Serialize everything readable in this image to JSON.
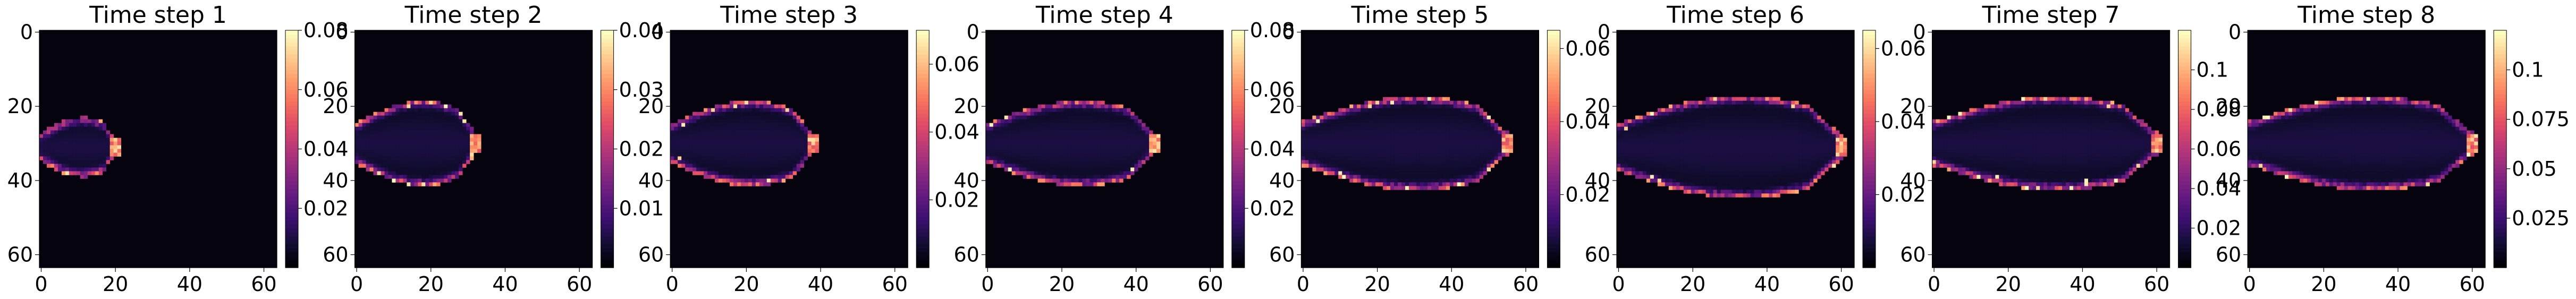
{
  "figure": {
    "colormap": "magma",
    "colormap_stops": [
      "#000004",
      "#140e36",
      "#3b0f70",
      "#641a80",
      "#8c2981",
      "#b73779",
      "#de4968",
      "#f7705c",
      "#fe9f6d",
      "#fecf92",
      "#fcfdbf"
    ]
  },
  "chart_data": [
    {
      "type": "heatmap",
      "title": "Time step 1",
      "grid_size": 64,
      "xlim": [
        0,
        63
      ],
      "ylim": [
        63,
        0
      ],
      "xticks": [
        0,
        20,
        40,
        60
      ],
      "yticks": [
        0,
        20,
        40,
        60
      ],
      "colorbar": {
        "vmin": 0.0,
        "vmax": 0.08,
        "ticks": [
          0.02,
          0.04,
          0.06,
          0.08
        ]
      },
      "plume": {
        "start_x": 0,
        "tip_x": 20,
        "center_y": 31,
        "half_width": 7,
        "peak": 0.08
      }
    },
    {
      "type": "heatmap",
      "title": "Time step 2",
      "grid_size": 64,
      "xlim": [
        0,
        63
      ],
      "ylim": [
        63,
        0
      ],
      "xticks": [
        0,
        20,
        40,
        60
      ],
      "yticks": [
        0,
        20,
        40,
        60
      ],
      "colorbar": {
        "vmin": 0.0,
        "vmax": 0.04,
        "ticks": [
          0.01,
          0.02,
          0.03,
          0.04
        ]
      },
      "plume": {
        "start_x": 0,
        "tip_x": 32,
        "center_y": 30,
        "half_width": 10,
        "peak": 0.042
      }
    },
    {
      "type": "heatmap",
      "title": "Time step 3",
      "grid_size": 64,
      "xlim": [
        0,
        63
      ],
      "ylim": [
        63,
        0
      ],
      "xticks": [
        0,
        20,
        40,
        60
      ],
      "yticks": [
        0,
        20,
        40,
        60
      ],
      "colorbar": {
        "vmin": 0.0,
        "vmax": 0.07,
        "ticks": [
          0.02,
          0.04,
          0.06
        ]
      },
      "plume": {
        "start_x": 0,
        "tip_x": 38,
        "center_y": 30,
        "half_width": 10,
        "peak": 0.07
      }
    },
    {
      "type": "heatmap",
      "title": "Time step 4",
      "grid_size": 64,
      "xlim": [
        0,
        63
      ],
      "ylim": [
        63,
        0
      ],
      "xticks": [
        0,
        20,
        40,
        60
      ],
      "yticks": [
        0,
        20,
        40,
        60
      ],
      "colorbar": {
        "vmin": 0.0,
        "vmax": 0.08,
        "ticks": [
          0.02,
          0.04,
          0.06,
          0.08
        ]
      },
      "plume": {
        "start_x": 0,
        "tip_x": 45,
        "center_y": 30,
        "half_width": 10,
        "peak": 0.08
      }
    },
    {
      "type": "heatmap",
      "title": "Time step 5",
      "grid_size": 64,
      "xlim": [
        0,
        63
      ],
      "ylim": [
        63,
        0
      ],
      "xticks": [
        0,
        20,
        40,
        60
      ],
      "yticks": [
        0,
        20,
        40,
        60
      ],
      "colorbar": {
        "vmin": 0.0,
        "vmax": 0.065,
        "ticks": [
          0.02,
          0.04,
          0.06
        ]
      },
      "plume": {
        "start_x": 0,
        "tip_x": 55,
        "center_y": 30,
        "half_width": 11,
        "peak": 0.065
      }
    },
    {
      "type": "heatmap",
      "title": "Time step 6",
      "grid_size": 64,
      "xlim": [
        0,
        63
      ],
      "ylim": [
        63,
        0
      ],
      "xticks": [
        0,
        20,
        40,
        60
      ],
      "yticks": [
        0,
        20,
        40,
        60
      ],
      "colorbar": {
        "vmin": 0.0,
        "vmax": 0.065,
        "ticks": [
          0.02,
          0.04,
          0.06
        ]
      },
      "plume": {
        "start_x": 0,
        "tip_x": 60,
        "center_y": 31,
        "half_width": 12,
        "peak": 0.065
      }
    },
    {
      "type": "heatmap",
      "title": "Time step 7",
      "grid_size": 64,
      "xlim": [
        0,
        63
      ],
      "ylim": [
        63,
        0
      ],
      "xticks": [
        0,
        20,
        40,
        60
      ],
      "yticks": [
        0,
        20,
        40,
        60
      ],
      "colorbar": {
        "vmin": 0.0,
        "vmax": 0.12,
        "ticks": [
          0.02,
          0.04,
          0.06,
          0.08,
          0.1
        ]
      },
      "plume": {
        "start_x": 0,
        "tip_x": 60,
        "center_y": 30,
        "half_width": 11,
        "peak": 0.12
      }
    },
    {
      "type": "heatmap",
      "title": "Time step 8",
      "grid_size": 64,
      "xlim": [
        0,
        63
      ],
      "ylim": [
        63,
        0
      ],
      "xticks": [
        0,
        20,
        40,
        60
      ],
      "yticks": [
        0,
        20,
        40,
        60
      ],
      "colorbar": {
        "vmin": 0.0,
        "vmax": 0.12,
        "ticks": [
          0.025,
          0.05,
          0.075,
          0.1
        ]
      },
      "plume": {
        "start_x": 0,
        "tip_x": 60,
        "center_y": 30,
        "half_width": 11,
        "peak": 0.12
      }
    }
  ]
}
